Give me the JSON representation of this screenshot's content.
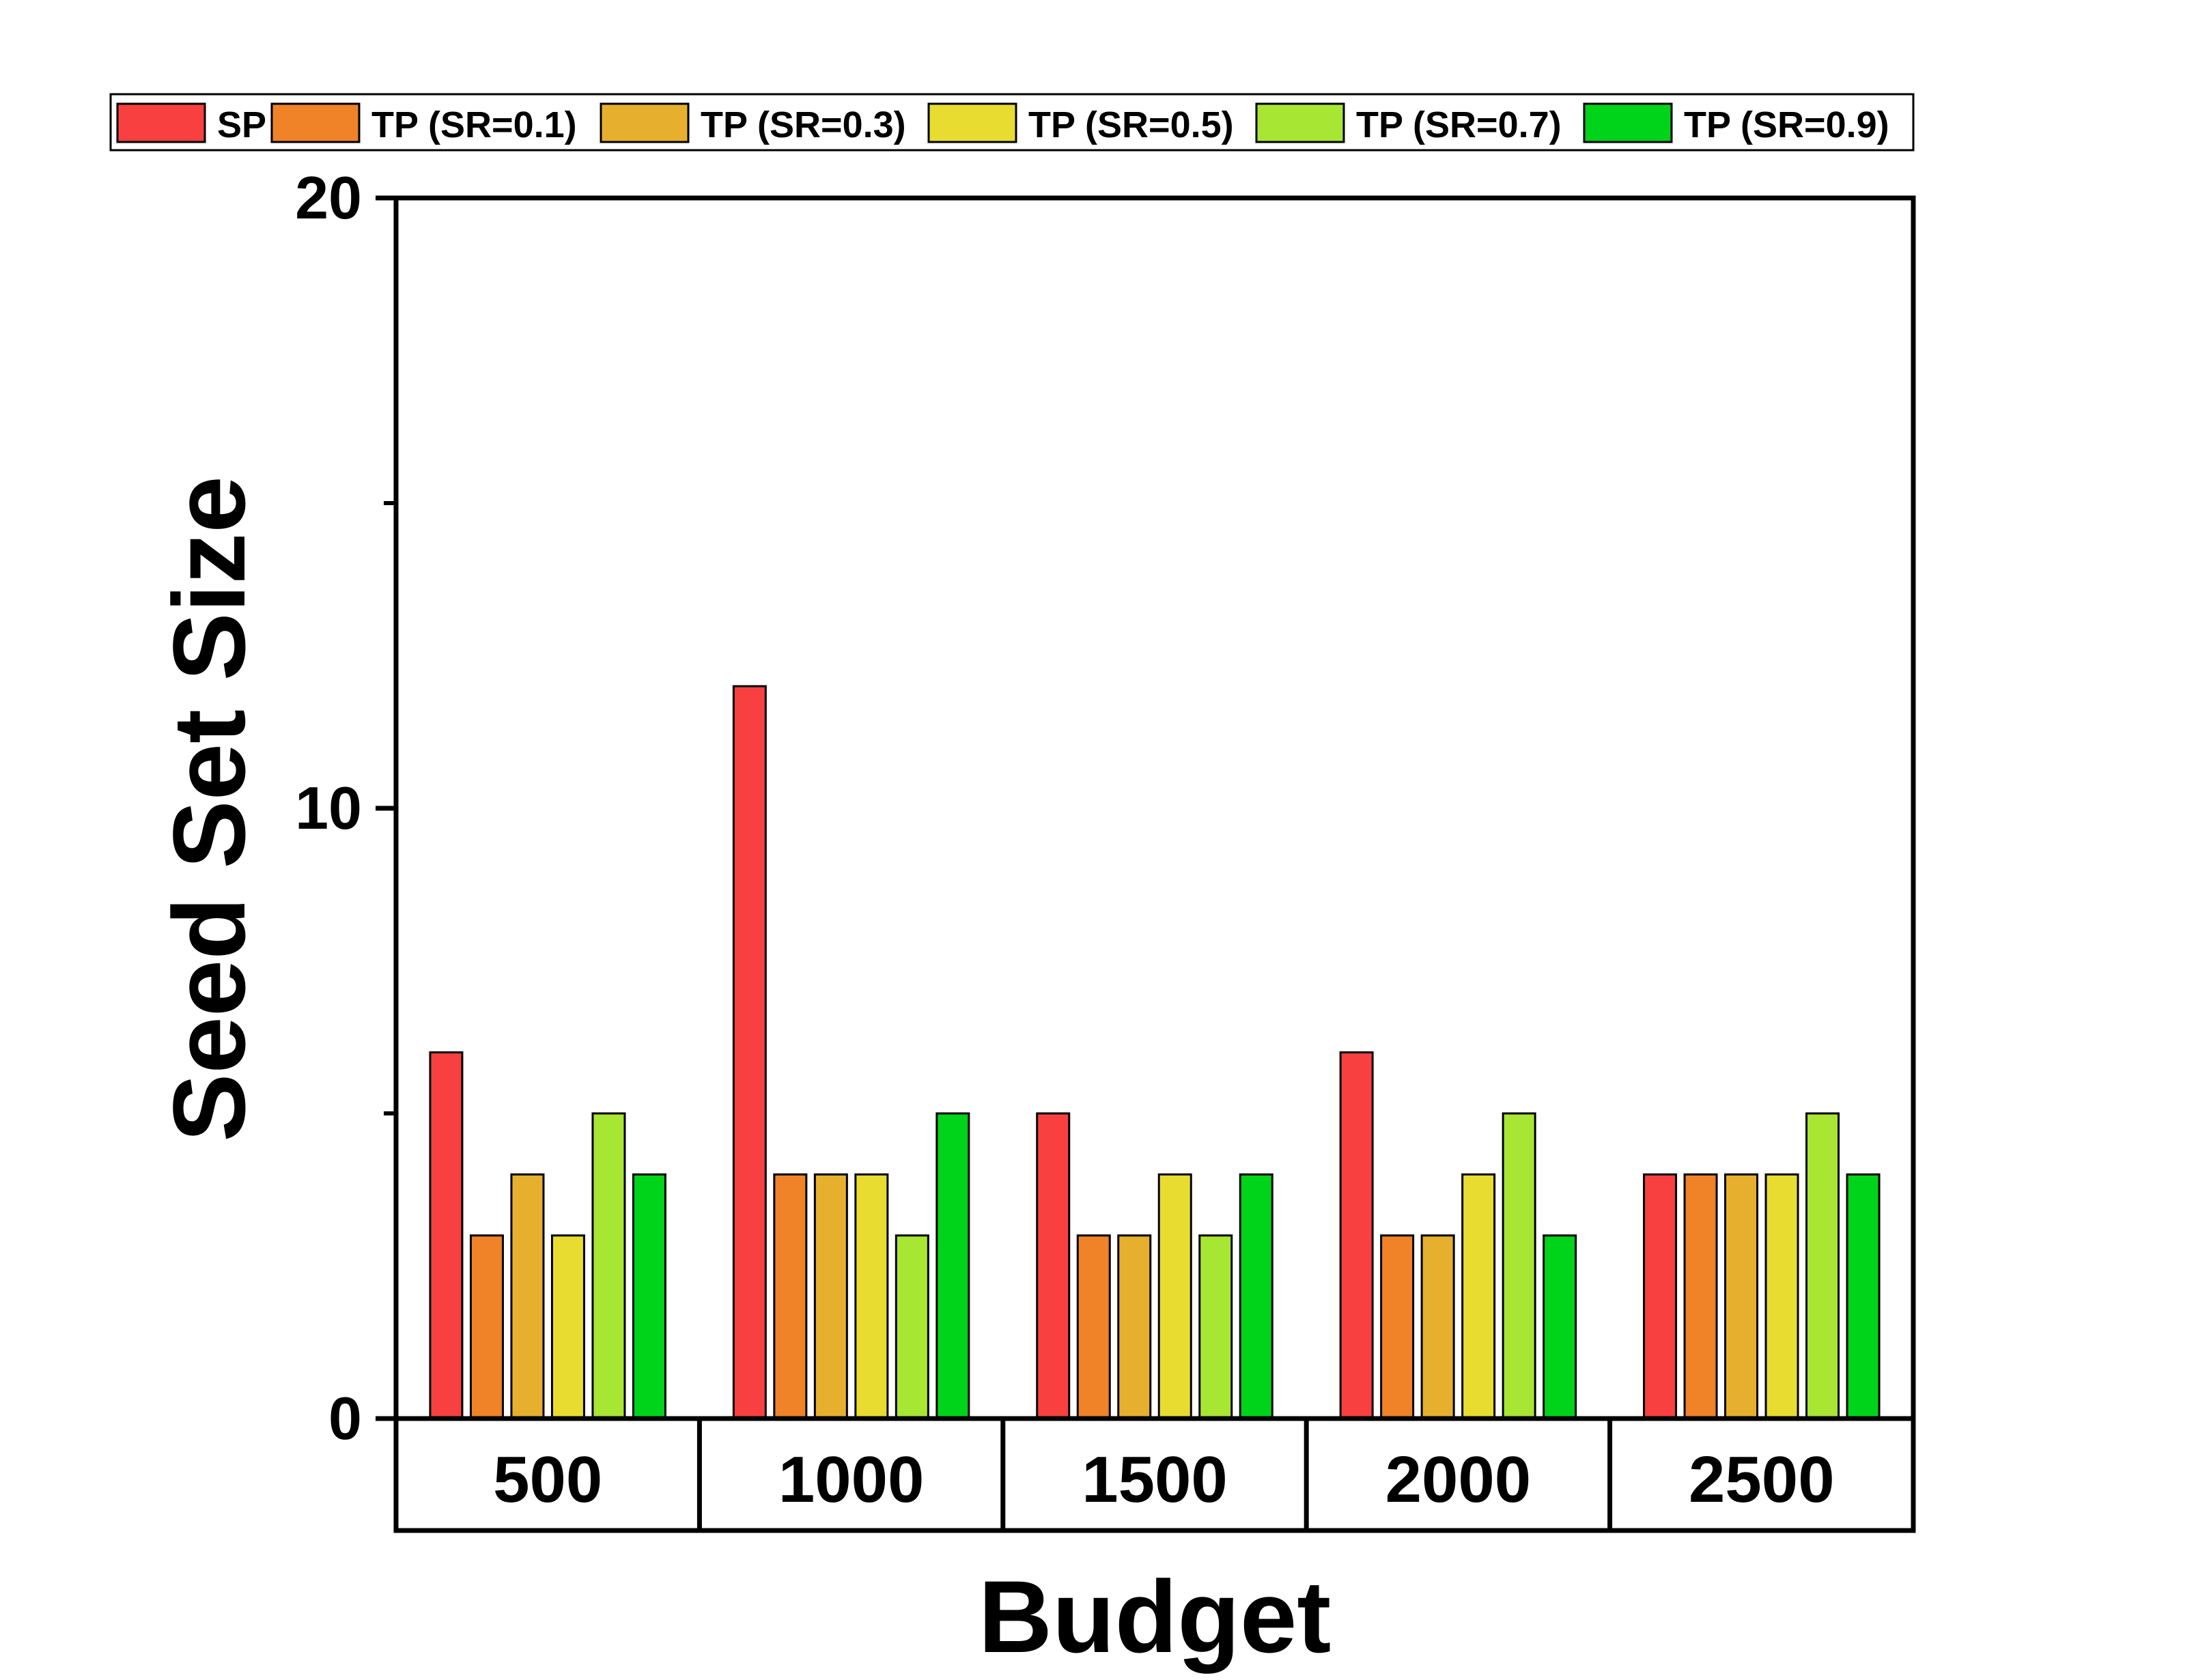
{
  "chart_data": {
    "type": "bar",
    "title": "",
    "xlabel": "Budget",
    "ylabel": "Seed Set Size",
    "categories": [
      "500",
      "1000",
      "1500",
      "2000",
      "2500"
    ],
    "ylim": [
      0,
      20
    ],
    "yticks": [
      0,
      10,
      20
    ],
    "y_minor_ticks": [
      5,
      15
    ],
    "grid": false,
    "legend_position": "top",
    "series": [
      {
        "name": "SP",
        "color": "#f94040",
        "values": [
          6,
          12,
          5,
          6,
          4
        ]
      },
      {
        "name": "TP (SR=0.1)",
        "color": "#f08228",
        "values": [
          3,
          4,
          3,
          3,
          4
        ]
      },
      {
        "name": "TP (SR=0.3)",
        "color": "#e6b02e",
        "values": [
          4,
          4,
          3,
          3,
          4
        ]
      },
      {
        "name": "TP (SR=0.5)",
        "color": "#e8dc30",
        "values": [
          3,
          4,
          4,
          4,
          4
        ]
      },
      {
        "name": "TP (SR=0.7)",
        "color": "#a8e634",
        "values": [
          5,
          3,
          3,
          5,
          5
        ]
      },
      {
        "name": "TP (SR=0.9)",
        "color": "#00d41a",
        "values": [
          4,
          5,
          4,
          3,
          4
        ]
      }
    ]
  }
}
